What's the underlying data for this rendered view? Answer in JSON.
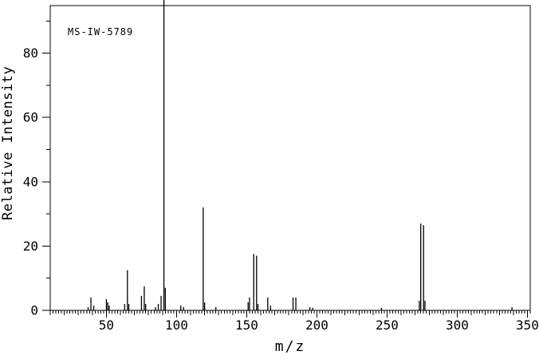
{
  "annotation": "MS-IW-5789",
  "chart_data": {
    "type": "bar",
    "subtype": "mass-spectrum",
    "title": "",
    "xlabel": "m/z",
    "ylabel": "Relative Intensity",
    "xlim": [
      10,
      352
    ],
    "ylim": [
      0,
      100
    ],
    "x_major_ticks": [
      50,
      100,
      150,
      200,
      250,
      300,
      350
    ],
    "x_medium_step": 10,
    "x_minor_step": 2,
    "y_major_ticks": [
      0,
      20,
      40,
      60,
      80,
      100
    ],
    "y_minor_step": 10,
    "grid": false,
    "legend": null,
    "line_color": "#000000",
    "background_color": "#ffffff",
    "peaks": [
      {
        "mz": 37,
        "intensity": 1
      },
      {
        "mz": 39,
        "intensity": 4
      },
      {
        "mz": 41,
        "intensity": 1.5
      },
      {
        "mz": 50,
        "intensity": 3.5
      },
      {
        "mz": 51,
        "intensity": 2.5
      },
      {
        "mz": 52,
        "intensity": 1.5
      },
      {
        "mz": 63,
        "intensity": 2
      },
      {
        "mz": 65,
        "intensity": 12.5
      },
      {
        "mz": 66,
        "intensity": 2
      },
      {
        "mz": 75,
        "intensity": 4.5
      },
      {
        "mz": 77,
        "intensity": 7.5
      },
      {
        "mz": 78,
        "intensity": 2
      },
      {
        "mz": 85,
        "intensity": 1
      },
      {
        "mz": 87,
        "intensity": 2
      },
      {
        "mz": 89,
        "intensity": 4.5
      },
      {
        "mz": 91,
        "intensity": 100
      },
      {
        "mz": 92,
        "intensity": 7
      },
      {
        "mz": 103,
        "intensity": 1.5
      },
      {
        "mz": 105,
        "intensity": 1
      },
      {
        "mz": 119,
        "intensity": 32
      },
      {
        "mz": 120,
        "intensity": 2.5
      },
      {
        "mz": 128,
        "intensity": 1
      },
      {
        "mz": 151,
        "intensity": 2.5
      },
      {
        "mz": 152,
        "intensity": 4
      },
      {
        "mz": 155,
        "intensity": 17.5
      },
      {
        "mz": 157,
        "intensity": 17
      },
      {
        "mz": 158,
        "intensity": 2
      },
      {
        "mz": 165,
        "intensity": 4
      },
      {
        "mz": 167,
        "intensity": 1.5
      },
      {
        "mz": 183,
        "intensity": 4
      },
      {
        "mz": 185,
        "intensity": 4
      },
      {
        "mz": 195,
        "intensity": 1
      },
      {
        "mz": 197,
        "intensity": 0.8
      },
      {
        "mz": 246,
        "intensity": 0.8
      },
      {
        "mz": 273,
        "intensity": 3
      },
      {
        "mz": 274,
        "intensity": 27
      },
      {
        "mz": 276,
        "intensity": 26.5
      },
      {
        "mz": 277,
        "intensity": 3
      },
      {
        "mz": 339,
        "intensity": 1
      }
    ]
  }
}
